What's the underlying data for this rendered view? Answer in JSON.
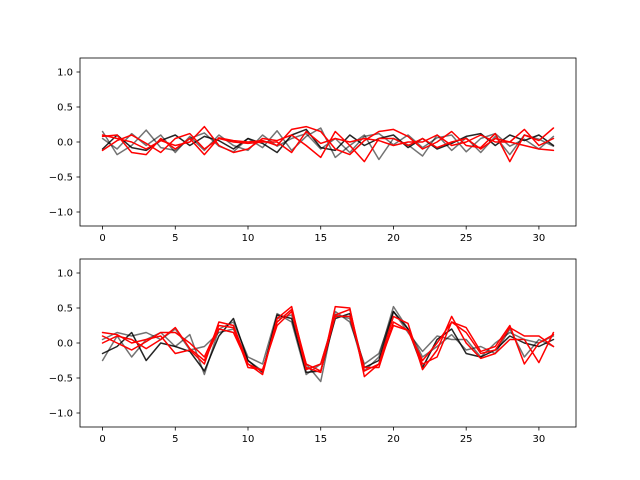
{
  "chart_data": [
    {
      "type": "line",
      "title": "",
      "xlabel": "",
      "ylabel": "",
      "xlim": [
        -1.55,
        32.55
      ],
      "ylim": [
        -1.2,
        1.2
      ],
      "xticks": [
        0,
        5,
        10,
        15,
        20,
        25,
        30
      ],
      "xtick_labels": [
        "0",
        "5",
        "10",
        "15",
        "20",
        "25",
        "30"
      ],
      "yticks": [
        -1.0,
        -0.5,
        0.0,
        0.5,
        1.0
      ],
      "ytick_labels": [
        "−1.0",
        "−0.5",
        "0.0",
        "0.5",
        "1.0"
      ],
      "grid": false,
      "x": [
        0,
        1,
        2,
        3,
        4,
        5,
        6,
        7,
        8,
        9,
        10,
        11,
        12,
        13,
        14,
        15,
        16,
        17,
        18,
        19,
        20,
        21,
        22,
        23,
        24,
        25,
        26,
        27,
        28,
        29,
        30,
        31
      ],
      "series": [
        {
          "color": "#000000",
          "opacity": 0.55,
          "values": [
            0.15,
            -0.18,
            -0.05,
            0.17,
            -0.08,
            -0.12,
            0.05,
            0.13,
            -0.06,
            -0.14,
            0.05,
            -0.08,
            0.16,
            -0.12,
            0.08,
            0.2,
            -0.22,
            -0.05,
            0.1,
            -0.25,
            0.05,
            -0.04,
            -0.2,
            0.1,
            -0.12,
            0.06,
            -0.15,
            0.08,
            -0.18,
            0.1,
            0.04,
            -0.06
          ]
        },
        {
          "color": "#000000",
          "opacity": 0.55,
          "values": [
            0.05,
            -0.1,
            0.12,
            -0.05,
            0.1,
            -0.15,
            0.08,
            -0.12,
            0.1,
            -0.05,
            -0.12,
            0.1,
            -0.06,
            0.05,
            0.12,
            -0.1,
            0.05,
            -0.15,
            0.08,
            0.12,
            -0.04,
            0.1,
            -0.08,
            0.06,
            0.1,
            -0.14,
            0.05,
            0.12,
            -0.06,
            0.04,
            -0.1,
            0.08
          ]
        },
        {
          "color": "#000000",
          "opacity": 0.85,
          "values": [
            -0.1,
            0.1,
            -0.08,
            -0.12,
            0.02,
            0.1,
            -0.05,
            0.08,
            0.02,
            -0.1,
            0.05,
            -0.02,
            -0.15,
            0.1,
            0.18,
            -0.08,
            -0.12,
            0.1,
            -0.05,
            0.05,
            0.1,
            -0.08,
            0.05,
            -0.1,
            -0.02,
            0.08,
            0.12,
            -0.05,
            0.1,
            0.02,
            0.1,
            -0.05
          ]
        },
        {
          "color": "#ff0000",
          "opacity": 1,
          "values": [
            0.08,
            0.1,
            -0.15,
            -0.18,
            0.05,
            -0.1,
            0.05,
            -0.18,
            0.06,
            0.02,
            0.0,
            0.02,
            -0.05,
            0.18,
            0.22,
            0.15,
            -0.1,
            -0.18,
            0.02,
            0.15,
            0.18,
            0.08,
            -0.1,
            0.0,
            0.15,
            -0.05,
            -0.08,
            0.12,
            -0.28,
            0.1,
            0.02,
            0.2
          ]
        },
        {
          "color": "#ff0000",
          "opacity": 1,
          "values": [
            0.1,
            0.05,
            0.0,
            -0.1,
            0.02,
            -0.05,
            0.0,
            0.22,
            -0.05,
            -0.15,
            -0.1,
            0.05,
            0.02,
            0.1,
            -0.05,
            -0.22,
            0.15,
            -0.05,
            -0.28,
            0.05,
            0.05,
            -0.05,
            0.05,
            -0.08,
            0.0,
            0.05,
            -0.1,
            0.05,
            0.0,
            -0.05,
            -0.1,
            -0.12
          ]
        },
        {
          "color": "#ff0000",
          "opacity": 1,
          "values": [
            -0.12,
            0.02,
            0.1,
            -0.02,
            -0.15,
            0.05,
            0.12,
            -0.1,
            0.05,
            0.0,
            -0.02,
            0.0,
            0.0,
            -0.15,
            0.15,
            -0.02,
            0.05,
            0.0,
            0.05,
            0.02,
            -0.05,
            0.0,
            0.0,
            0.1,
            -0.05,
            0.0,
            0.1,
            0.0,
            0.0,
            0.18,
            -0.05,
            0.05
          ]
        }
      ]
    },
    {
      "type": "line",
      "title": "",
      "xlabel": "",
      "ylabel": "",
      "xlim": [
        -1.55,
        32.55
      ],
      "ylim": [
        -1.2,
        1.2
      ],
      "xticks": [
        0,
        5,
        10,
        15,
        20,
        25,
        30
      ],
      "xtick_labels": [
        "0",
        "5",
        "10",
        "15",
        "20",
        "25",
        "30"
      ],
      "yticks": [
        -1.0,
        -0.5,
        0.0,
        0.5,
        1.0
      ],
      "ytick_labels": [
        "−1.0",
        "−0.5",
        "0.0",
        "0.5",
        "1.0"
      ],
      "grid": false,
      "x": [
        0,
        1,
        2,
        3,
        4,
        5,
        6,
        7,
        8,
        9,
        10,
        11,
        12,
        13,
        14,
        15,
        16,
        17,
        18,
        19,
        20,
        21,
        22,
        23,
        24,
        25,
        26,
        27,
        28,
        29,
        30,
        31
      ],
      "series": [
        {
          "color": "#000000",
          "opacity": 0.55,
          "values": [
            -0.25,
            0.1,
            -0.2,
            0.05,
            0.15,
            -0.05,
            0.12,
            -0.45,
            0.2,
            0.3,
            -0.2,
            -0.3,
            0.42,
            0.3,
            -0.45,
            -0.3,
            0.4,
            0.35,
            -0.4,
            -0.2,
            0.52,
            0.2,
            -0.2,
            -0.05,
            0.12,
            -0.1,
            -0.05,
            -0.15,
            0.2,
            -0.2,
            0.05,
            -0.05
          ]
        },
        {
          "color": "#000000",
          "opacity": 0.55,
          "values": [
            0.05,
            0.15,
            0.1,
            0.15,
            0.05,
            0.2,
            -0.1,
            -0.05,
            0.15,
            0.2,
            -0.25,
            -0.4,
            0.35,
            0.4,
            -0.3,
            -0.55,
            0.45,
            0.3,
            -0.3,
            -0.15,
            0.45,
            0.15,
            -0.12,
            0.1,
            0.05,
            0.05,
            -0.2,
            0.0,
            0.15,
            0.05,
            0.0,
            0.1
          ]
        },
        {
          "color": "#000000",
          "opacity": 0.85,
          "values": [
            -0.15,
            -0.05,
            0.15,
            -0.25,
            0.0,
            -0.05,
            -0.12,
            -0.4,
            0.1,
            0.35,
            -0.25,
            -0.42,
            0.4,
            0.35,
            -0.42,
            -0.4,
            0.35,
            0.42,
            -0.35,
            -0.25,
            0.45,
            0.2,
            -0.35,
            0.05,
            0.2,
            -0.15,
            -0.2,
            -0.1,
            0.1,
            0.0,
            -0.05,
            0.05
          ]
        },
        {
          "color": "#ff0000",
          "opacity": 1,
          "values": [
            0.15,
            0.12,
            0.0,
            0.05,
            0.1,
            -0.15,
            -0.1,
            -0.3,
            0.3,
            0.25,
            -0.3,
            -0.45,
            0.35,
            0.52,
            -0.35,
            -0.42,
            0.52,
            0.5,
            -0.48,
            -0.3,
            0.38,
            0.28,
            -0.38,
            -0.1,
            0.38,
            0.0,
            -0.22,
            -0.15,
            0.05,
            0.05,
            -0.28,
            0.15
          ]
        },
        {
          "color": "#ff0000",
          "opacity": 1,
          "values": [
            0.1,
            0.0,
            -0.1,
            0.02,
            0.15,
            0.15,
            0.0,
            -0.2,
            0.25,
            0.22,
            -0.35,
            -0.38,
            0.25,
            0.45,
            -0.38,
            -0.3,
            0.38,
            0.38,
            -0.35,
            -0.35,
            0.3,
            0.18,
            -0.3,
            -0.2,
            0.3,
            0.22,
            -0.12,
            -0.05,
            0.25,
            -0.3,
            0.0,
            0.12
          ]
        },
        {
          "color": "#ff0000",
          "opacity": 1,
          "values": [
            0.0,
            0.1,
            0.05,
            -0.08,
            0.05,
            0.22,
            -0.08,
            -0.25,
            0.2,
            0.15,
            -0.3,
            -0.4,
            0.3,
            0.48,
            -0.3,
            -0.4,
            0.4,
            0.48,
            -0.4,
            -0.3,
            0.25,
            0.18,
            -0.25,
            0.0,
            0.3,
            0.15,
            -0.15,
            -0.1,
            0.22,
            0.1,
            0.1,
            -0.05
          ]
        }
      ]
    }
  ]
}
